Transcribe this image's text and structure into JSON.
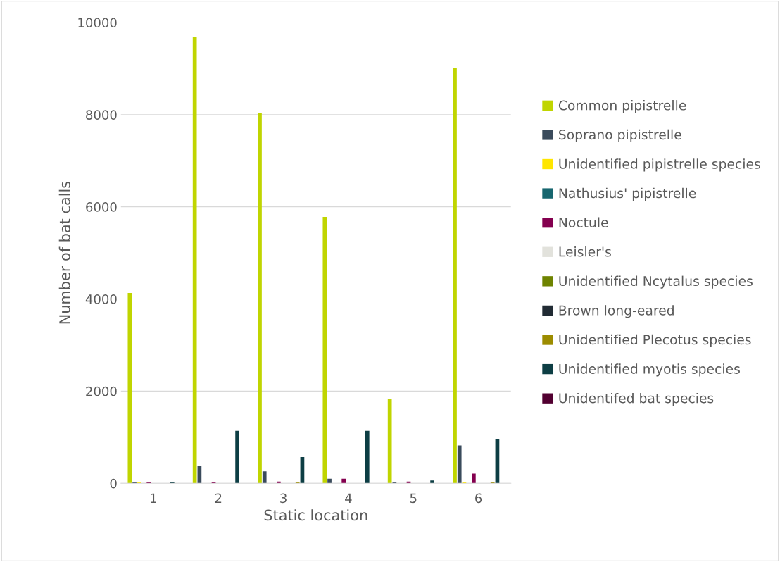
{
  "chart_data": {
    "type": "bar",
    "xlabel": "Static location",
    "ylabel": "Number of bat calls",
    "categories": [
      "1",
      "2",
      "3",
      "4",
      "5",
      "6"
    ],
    "ylim": [
      0,
      10000
    ],
    "yticks": [
      0,
      2000,
      4000,
      6000,
      8000,
      10000
    ],
    "grid": "y",
    "legend": "right",
    "series": [
      {
        "name": "Common pipistrelle",
        "color": "#c0d500",
        "values": [
          4130,
          9680,
          8030,
          5780,
          1830,
          9020
        ]
      },
      {
        "name": "Soprano pipistrelle",
        "color": "#3a4b5c",
        "values": [
          30,
          370,
          260,
          100,
          30,
          820
        ]
      },
      {
        "name": "Unidentified pipistrelle species",
        "color": "#ffe600",
        "values": [
          20,
          0,
          0,
          0,
          0,
          20
        ]
      },
      {
        "name": "Nathusius' pipistrelle",
        "color": "#17666f",
        "values": [
          0,
          0,
          0,
          0,
          0,
          0
        ]
      },
      {
        "name": "Noctule",
        "color": "#84004f",
        "values": [
          20,
          30,
          40,
          100,
          40,
          210
        ]
      },
      {
        "name": "Leisler's",
        "color": "#e2e2dc",
        "values": [
          0,
          0,
          0,
          0,
          0,
          0
        ]
      },
      {
        "name": "Unidentified Ncytalus species",
        "color": "#6e8300",
        "values": [
          0,
          0,
          0,
          0,
          0,
          0
        ]
      },
      {
        "name": "Brown long-eared",
        "color": "#212b34",
        "values": [
          0,
          0,
          0,
          0,
          0,
          0
        ]
      },
      {
        "name": "Unidentified Plecotus species",
        "color": "#9c8c00",
        "values": [
          0,
          0,
          20,
          0,
          0,
          20
        ]
      },
      {
        "name": "Unidentified myotis species",
        "color": "#0d3e44",
        "values": [
          20,
          1140,
          570,
          1140,
          60,
          960
        ]
      },
      {
        "name": "Unidentifed bat species",
        "color": "#520031",
        "values": [
          0,
          0,
          0,
          0,
          0,
          0
        ]
      }
    ]
  }
}
